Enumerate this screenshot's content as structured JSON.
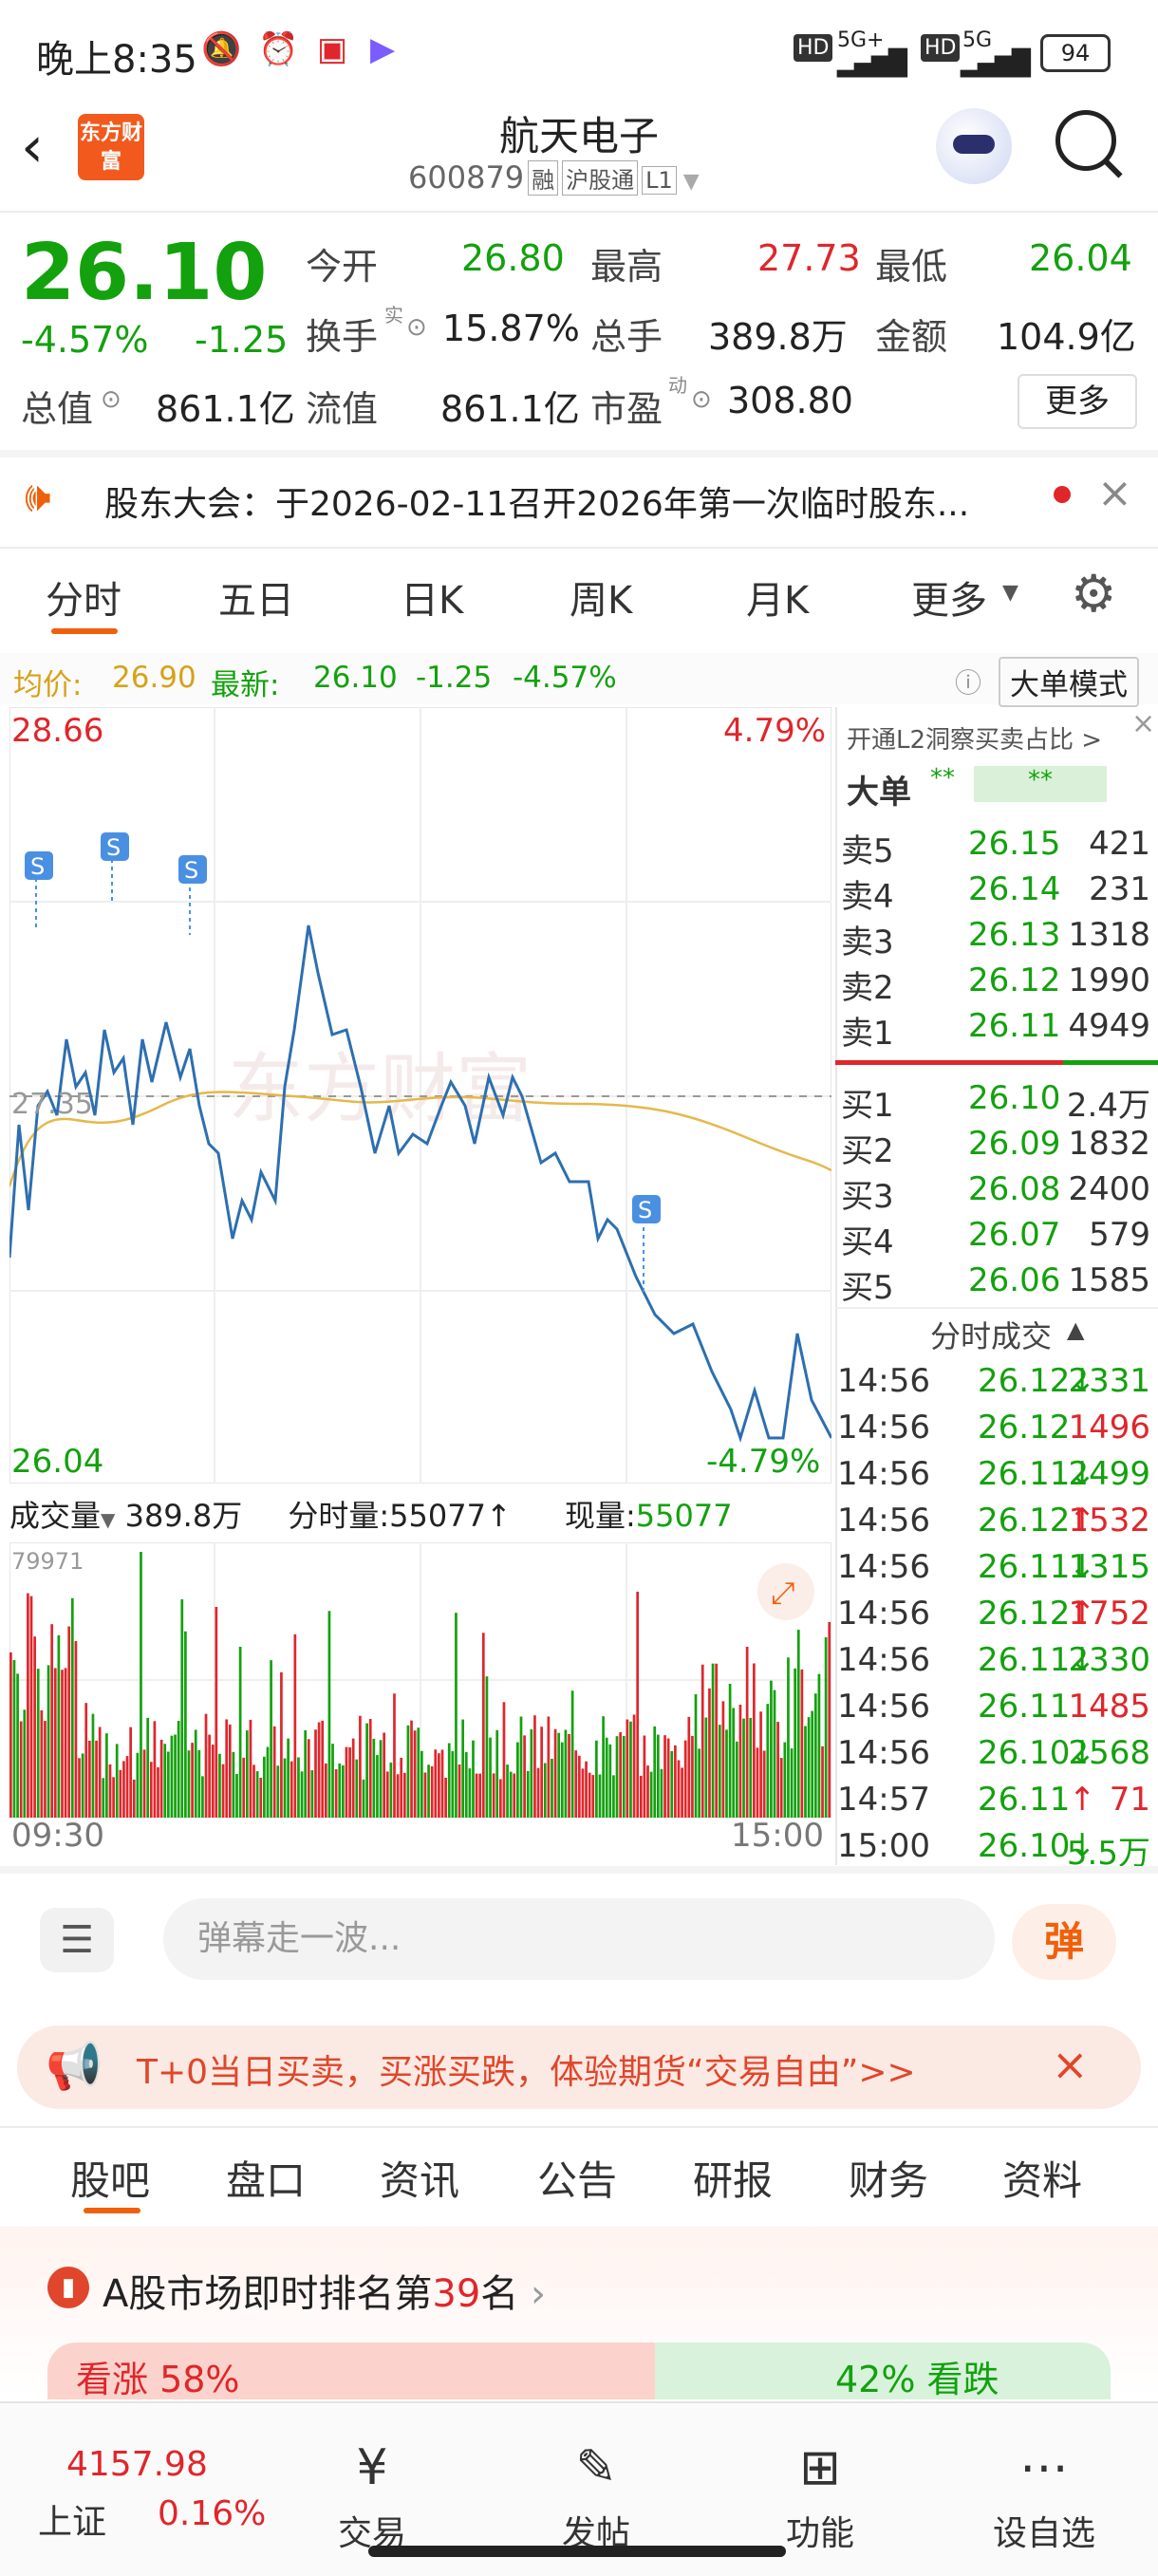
{
  "status_bar": {
    "time": "晚上8:35",
    "battery": "94",
    "net1": "5G+",
    "net2": "5G",
    "hd": "HD"
  },
  "header": {
    "logo": "东方财富",
    "title": "航天电子",
    "code": "600879",
    "tags": [
      "融",
      "沪股通",
      "L1"
    ]
  },
  "quote": {
    "price": "26.10",
    "pct": "-4.57%",
    "chg": "-1.25",
    "open_label": "今开",
    "open": "26.80",
    "high_label": "最高",
    "high": "27.73",
    "low_label": "最低",
    "low": "26.04",
    "turnover_label": "换手",
    "turnover_sup": "实",
    "turnover": "15.87%",
    "volume_label": "总手",
    "volume": "389.8万",
    "amount_label": "金额",
    "amount": "104.9亿",
    "mcap_label": "总值",
    "mcap": "861.1亿",
    "float_label": "流值",
    "float": "861.1亿",
    "pe_label": "市盈",
    "pe_sup": "动",
    "pe": "308.80",
    "more": "更多"
  },
  "notice": {
    "text": "股东大会：于2026-02-11召开2026年第一次临时股东..."
  },
  "tabs": [
    "分时",
    "五日",
    "日K",
    "周K",
    "月K",
    "更多"
  ],
  "info_bar": {
    "avg_label": "均价:",
    "avg": "26.90",
    "latest_label": "最新:",
    "latest": "26.10",
    "chg": "-1.25",
    "pct": "-4.57%",
    "mode": "大单模式"
  },
  "chart": {
    "top_price": "28.66",
    "top_pct": "4.79%",
    "bottom_price": "26.04",
    "bottom_pct": "-4.79%",
    "mid_price": "27.35",
    "watermark": "东方财富",
    "s_label": "S"
  },
  "book": {
    "title": "开通L2洞察买卖占比 >",
    "big_order": "大单",
    "stars": "**",
    "sells": [
      [
        "卖5",
        "26.15",
        "421"
      ],
      [
        "卖4",
        "26.14",
        "231"
      ],
      [
        "卖3",
        "26.13",
        "1318"
      ],
      [
        "卖2",
        "26.12",
        "1990"
      ],
      [
        "卖1",
        "26.11",
        "4949"
      ]
    ],
    "buys": [
      [
        "买1",
        "26.10",
        "2.4万"
      ],
      [
        "买2",
        "26.09",
        "1832"
      ],
      [
        "买3",
        "26.08",
        "2400"
      ],
      [
        "买4",
        "26.07",
        "579"
      ],
      [
        "买5",
        "26.06",
        "1585"
      ]
    ],
    "trades_title": "分时成交",
    "trades": [
      [
        "14:56",
        "26.12",
        "↓",
        "2331",
        "g"
      ],
      [
        "14:56",
        "26.12",
        "",
        "1496",
        "r"
      ],
      [
        "14:56",
        "26.11",
        "↓",
        "2499",
        "g"
      ],
      [
        "14:56",
        "26.12",
        "↑",
        "1532",
        "r"
      ],
      [
        "14:56",
        "26.11",
        "↓",
        "1315",
        "g"
      ],
      [
        "14:56",
        "26.12",
        "↑",
        "1752",
        "r"
      ],
      [
        "14:56",
        "26.11",
        "↓",
        "2330",
        "g"
      ],
      [
        "14:56",
        "26.11",
        "",
        "1485",
        "r"
      ],
      [
        "14:56",
        "26.10",
        "↓",
        "2568",
        "g"
      ],
      [
        "14:57",
        "26.11",
        "↑",
        "71",
        "r"
      ],
      [
        "15:00",
        "26.10",
        "↓",
        "5.5万",
        "g"
      ]
    ]
  },
  "volume_info": {
    "label": "成交量",
    "total": "389.8万",
    "per_label": "分时量:",
    "per": "55077",
    "now_label": "现量:",
    "now": "55077",
    "max": "79971",
    "t_start": "09:30",
    "t_end": "15:00"
  },
  "comment": {
    "placeholder": "弹幕走一波...",
    "danmu_btn": "弹"
  },
  "promo": {
    "text": "T+0当日买卖，买涨买跌，体验期货“交易自由”>>"
  },
  "bottom_tabs": [
    "股吧",
    "盘口",
    "资讯",
    "公告",
    "研报",
    "财务",
    "资料"
  ],
  "rank": {
    "prefix": "A股市场即时排名第",
    "rank": "39",
    "suffix": "名",
    "up": "看涨 58%",
    "down": "42% 看跌"
  },
  "nav": {
    "index_value": "4157.98",
    "index_name": "上证",
    "index_pct": "0.16%",
    "items": [
      "交易",
      "发帖",
      "功能",
      "设自选"
    ]
  }
}
